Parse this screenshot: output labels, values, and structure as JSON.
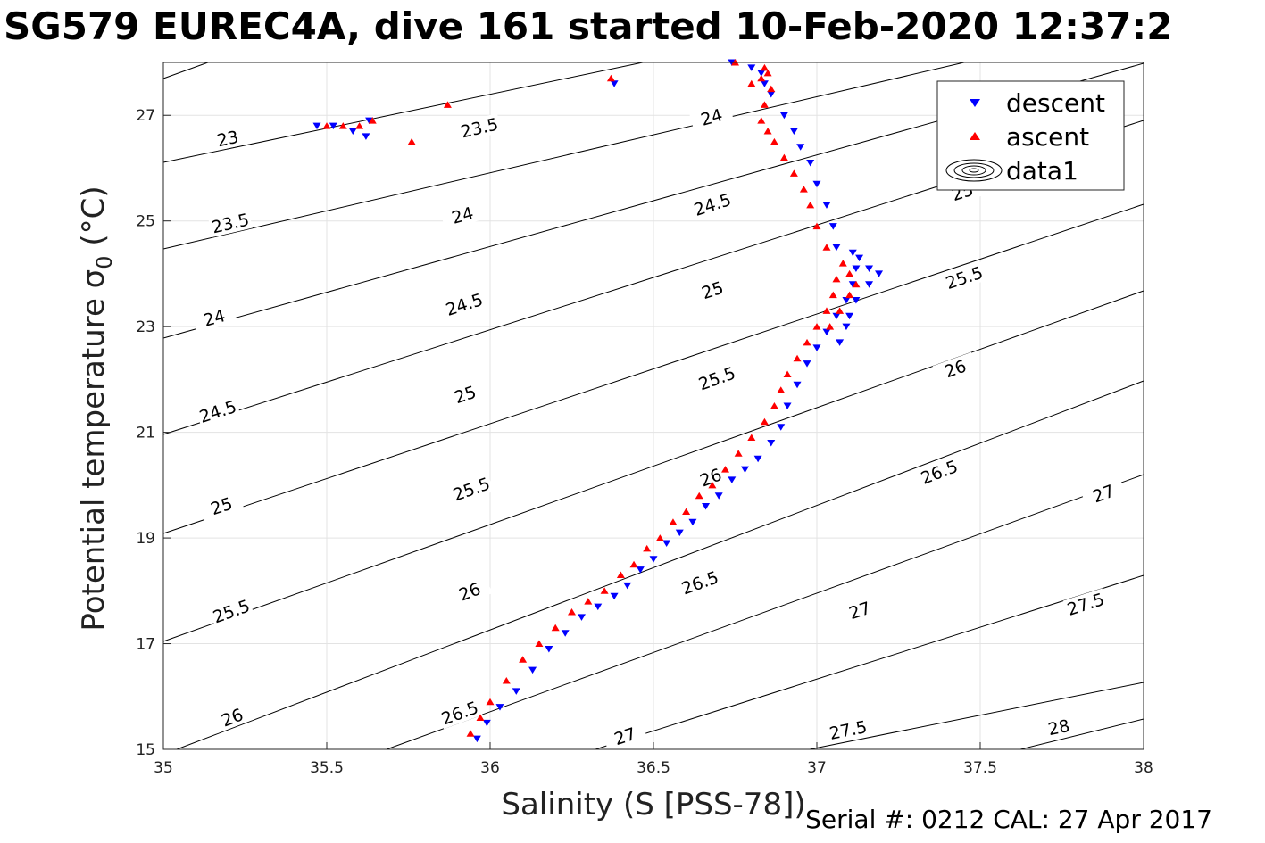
{
  "chart_data": {
    "type": "scatter",
    "title": "SG579 EUREC4A, dive 161 started 10-Feb-2020 12:37:2",
    "xlabel": "Salinity (S [PSS-78])",
    "ylabel": "Potential temperature σ",
    "ylabel_subscript": "0",
    "ylabel_unit": " (°C)",
    "xlim": [
      35,
      38
    ],
    "ylim": [
      15,
      28
    ],
    "xticks": [
      "35",
      "35.5",
      "36",
      "36.5",
      "37",
      "37.5",
      "38"
    ],
    "yticks": [
      "15",
      "17",
      "19",
      "21",
      "23",
      "25",
      "27"
    ],
    "grid": true,
    "legend_position": "top-right",
    "legend": [
      "descent",
      "ascent",
      "data1"
    ],
    "footer": "Serial #: 0212  CAL: 27 Apr 2017",
    "contour_levels": [
      "23",
      "23.5",
      "24",
      "24.5",
      "25",
      "25.5",
      "26",
      "26.5",
      "27",
      "27.5",
      "28"
    ],
    "series": [
      {
        "name": "descent",
        "marker": "triangle-down",
        "color": "#0000ff",
        "x": [
          35.96,
          35.99,
          36.03,
          36.08,
          36.13,
          36.18,
          36.23,
          36.28,
          36.33,
          36.38,
          36.42,
          36.46,
          36.5,
          36.54,
          36.58,
          36.62,
          36.66,
          36.7,
          36.74,
          36.78,
          36.82,
          36.86,
          36.89,
          36.91,
          36.94,
          36.97,
          37.0,
          37.03,
          37.06,
          37.09,
          37.11,
          37.12,
          37.11,
          37.13,
          37.16,
          37.19,
          37.16,
          37.12,
          37.1,
          37.09,
          37.07,
          37.06,
          37.05,
          37.03,
          37.0,
          36.98,
          36.95,
          36.93,
          36.9,
          36.86,
          36.84,
          36.83,
          36.8,
          36.74,
          35.62,
          35.58,
          35.52,
          35.47,
          35.63,
          36.38
        ],
        "y": [
          15.2,
          15.5,
          15.8,
          16.1,
          16.5,
          16.9,
          17.2,
          17.5,
          17.7,
          17.9,
          18.1,
          18.4,
          18.6,
          18.9,
          19.1,
          19.3,
          19.6,
          19.8,
          20.1,
          20.3,
          20.5,
          20.8,
          21.1,
          21.5,
          21.9,
          22.3,
          22.6,
          22.9,
          23.2,
          23.5,
          23.8,
          24.1,
          24.4,
          24.3,
          24.1,
          24.0,
          23.8,
          23.5,
          23.2,
          23.0,
          22.7,
          24.5,
          24.9,
          25.3,
          25.7,
          26.1,
          26.4,
          26.7,
          27.0,
          27.4,
          27.6,
          27.8,
          27.9,
          28.0,
          26.6,
          26.7,
          26.8,
          26.8,
          26.9,
          27.6
        ]
      },
      {
        "name": "ascent",
        "marker": "triangle-up",
        "color": "#ff0000",
        "x": [
          35.94,
          35.97,
          36.0,
          36.05,
          36.1,
          36.15,
          36.2,
          36.25,
          36.3,
          36.35,
          36.4,
          36.44,
          36.48,
          36.52,
          36.56,
          36.6,
          36.64,
          36.68,
          36.72,
          36.76,
          36.8,
          36.84,
          36.87,
          36.89,
          36.91,
          36.94,
          36.97,
          37.0,
          37.03,
          37.05,
          37.06,
          37.08,
          37.1,
          37.12,
          37.1,
          37.07,
          37.04,
          37.03,
          37.0,
          36.98,
          36.96,
          36.93,
          36.9,
          36.87,
          36.85,
          36.83,
          36.84,
          36.86,
          36.83,
          36.8,
          36.85,
          36.84,
          36.75,
          35.5,
          35.55,
          35.6,
          35.64,
          35.76,
          35.87,
          36.37
        ],
        "y": [
          15.3,
          15.6,
          15.9,
          16.3,
          16.7,
          17.0,
          17.3,
          17.6,
          17.8,
          18.0,
          18.3,
          18.5,
          18.8,
          19.0,
          19.3,
          19.5,
          19.8,
          20.0,
          20.3,
          20.6,
          20.9,
          21.2,
          21.5,
          21.8,
          22.1,
          22.4,
          22.7,
          23.0,
          23.3,
          23.6,
          23.9,
          24.2,
          24.0,
          23.8,
          23.6,
          23.3,
          23.0,
          24.5,
          24.9,
          25.3,
          25.6,
          25.9,
          26.2,
          26.5,
          26.7,
          26.9,
          27.2,
          27.5,
          27.7,
          27.6,
          27.8,
          27.9,
          28.0,
          26.8,
          26.8,
          26.8,
          26.9,
          26.5,
          27.2,
          27.7
        ]
      }
    ]
  }
}
